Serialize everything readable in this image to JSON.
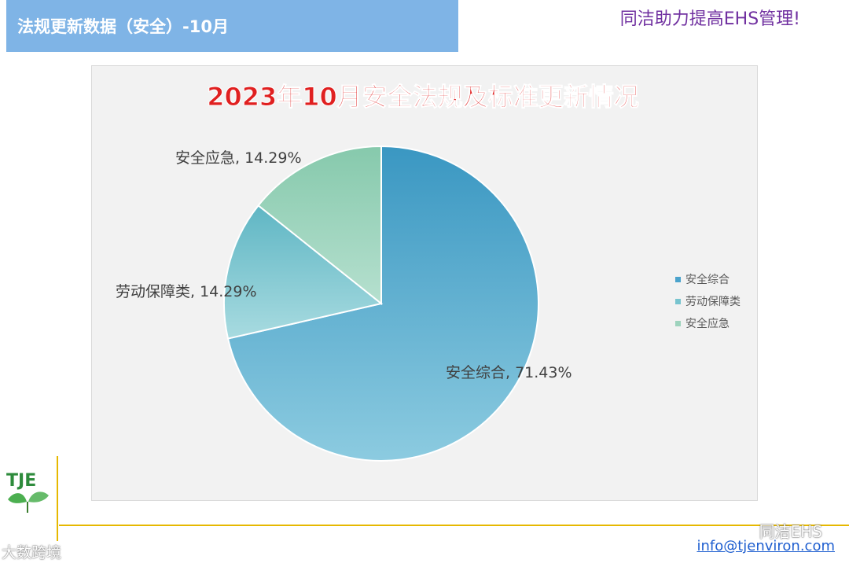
{
  "header": {
    "title": "法规更新数据（安全）-10月",
    "slogan": "同洁助力提高EHS管理!"
  },
  "chart_data": {
    "type": "pie",
    "title": "2023年10月安全法规及标准更新情况",
    "categories": [
      "安全综合",
      "劳动保障类",
      "安全应急"
    ],
    "values": [
      71.43,
      14.29,
      14.29
    ],
    "data_labels": [
      "安全综合, 71.43%",
      "劳动保障类, 14.29%",
      "安全应急, 14.29%"
    ],
    "legend": {
      "placement": "right",
      "entries": [
        "安全综合",
        "劳动保障类",
        "安全应急"
      ]
    },
    "colors": [
      "#4ba3cc",
      "#78c4cf",
      "#9ed3bd"
    ],
    "title_color": "#e02020"
  },
  "footer": {
    "logo_text": "TJE",
    "watermark_left": "大数跨境",
    "watermark_right": "同洁EHS",
    "email": "info@tjenviron.com"
  }
}
